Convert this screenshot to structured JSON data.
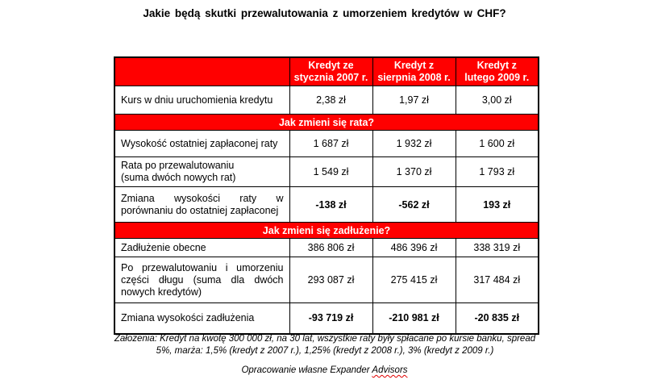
{
  "page": {
    "title": "Jakie będą skutki przewalutowania z umorzeniem kredytów w CHF?"
  },
  "colors": {
    "accent_red": "#ff0000",
    "header_text": "#ffffff",
    "border": "#000000"
  },
  "table": {
    "header": {
      "corner": "",
      "columns": [
        "Kredyt ze\nstycznia 2007 r.",
        "Kredyt z\nsierpnia 2008 r.",
        "Kredyt z\nlutego 2009 r."
      ]
    },
    "rows": [
      {
        "type": "data",
        "label": "Kurs w dniu uruchomienia kredytu",
        "values": [
          "2,38 zł",
          "1,97 zł",
          "3,00 zł"
        ]
      },
      {
        "type": "band",
        "label": "Jak zmieni się rata?"
      },
      {
        "type": "data",
        "label": "Wysokość ostatniej zapłaconej raty",
        "values": [
          "1 687 zł",
          "1 932 zł",
          "1 600 zł"
        ]
      },
      {
        "type": "data",
        "label": "Rata po przewalutowaniu\n(suma dwóch nowych rat)",
        "values": [
          "1 549 zł",
          "1 370 zł",
          "1 793 zł"
        ]
      },
      {
        "type": "data",
        "label": "Zmiana wysokości raty w porównaniu do ostatniej zapłaconej",
        "values": [
          "-138 zł",
          "-562 zł",
          "193 zł"
        ],
        "bold": true
      },
      {
        "type": "band",
        "label": "Jak zmieni się zadłużenie?"
      },
      {
        "type": "data",
        "label": "Zadłużenie obecne",
        "values": [
          "386 806 zł",
          "486 396 zł",
          "338 319 zł"
        ]
      },
      {
        "type": "data",
        "label": "Po przewalutowaniu i umorzeniu części długu (suma dla dwóch nowych kredytów)",
        "values": [
          "293 087 zł",
          "275 415 zł",
          "317 484 zł"
        ]
      },
      {
        "type": "data",
        "label": "Zmiana wysokości zadłużenia",
        "values": [
          "-93 719 zł",
          "-210 981 zł",
          "-20 835 zł"
        ],
        "bold": true
      }
    ]
  },
  "footer": {
    "assumptions": "Założenia: Kredyt na kwotę 300 000 zł, na 30 lat, wszystkie raty były spłacane po kursie banku, spread\n5%, marża: 1,5% (kredyt z 2007 r.), 1,25% (kredyt z 2008 r.), 3% (kredyt z 2009 r.)",
    "source_text": "Opracowanie własne Expander",
    "source_brand": "Advisors"
  }
}
